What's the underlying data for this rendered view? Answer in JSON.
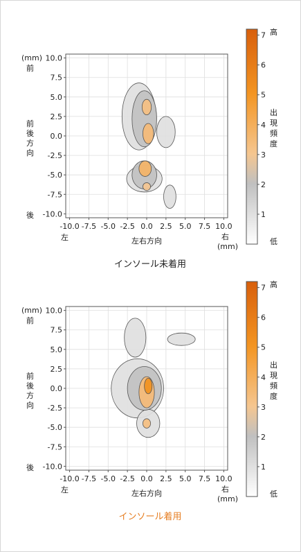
{
  "chart_data": [
    {
      "type": "heatmap",
      "title": "インソール未着用",
      "title_color": "#222222",
      "xlabel": "左右方向",
      "ylabel": [
        "前",
        "後",
        "方",
        "向"
      ],
      "x_left_label": "左",
      "x_right_label": "右",
      "x_unit": "(mm)",
      "y_unit": "(mm)",
      "y_top_label": "前",
      "y_bottom_label": "後",
      "xlim": [
        -10.5,
        10.5
      ],
      "ylim": [
        -10.5,
        10.5
      ],
      "xticks": [
        "-10.0",
        "-7.5",
        "-5.0",
        "-2.5",
        "0.0",
        "2.5",
        "5.0",
        "7.5",
        "10.0"
      ],
      "yticks": [
        "10.0",
        "7.5",
        "5.0",
        "2.5",
        "0.0",
        "-2.5",
        "-5.0",
        "-7.5",
        "-10.0"
      ],
      "grid": true,
      "colorbar": {
        "min": 0,
        "max": 7.2,
        "ticks": [
          "1",
          "2",
          "3",
          "4",
          "5",
          "6",
          "7"
        ],
        "high_label": "高",
        "low_label": "低",
        "label": [
          "出",
          "現",
          "頻",
          "度"
        ]
      },
      "blobs": [
        {
          "cx": -1.0,
          "cy": 2.5,
          "rx": 2.2,
          "ry": 4.3,
          "v": 1.0
        },
        {
          "cx": -0.3,
          "cy": -5.5,
          "rx": 2.3,
          "ry": 1.7,
          "v": 1.0
        },
        {
          "cx": 3.0,
          "cy": -7.8,
          "rx": 0.8,
          "ry": 1.5,
          "v": 1.0
        },
        {
          "cx": 2.5,
          "cy": 0.5,
          "rx": 1.2,
          "ry": 2.0,
          "v": 1.0
        },
        {
          "cx": -0.3,
          "cy": 2.2,
          "rx": 1.6,
          "ry": 3.6,
          "v": 2.0
        },
        {
          "cx": -0.3,
          "cy": -5.0,
          "rx": 1.6,
          "ry": 1.8,
          "v": 2.0
        },
        {
          "cx": 0.0,
          "cy": 3.7,
          "rx": 0.6,
          "ry": 1.0,
          "v": 3.3
        },
        {
          "cx": 0.2,
          "cy": 0.3,
          "rx": 0.7,
          "ry": 1.3,
          "v": 3.5
        },
        {
          "cx": -0.2,
          "cy": -4.2,
          "rx": 0.8,
          "ry": 1.0,
          "v": 3.8
        },
        {
          "cx": 0.0,
          "cy": -6.5,
          "rx": 0.5,
          "ry": 0.5,
          "v": 3.0
        }
      ]
    },
    {
      "type": "heatmap",
      "title": "インソール着用",
      "title_color": "#e67e22",
      "xlabel": "左右方向",
      "ylabel": [
        "前",
        "後",
        "方",
        "向"
      ],
      "x_left_label": "左",
      "x_right_label": "右",
      "x_unit": "(mm)",
      "y_unit": "(mm)",
      "y_top_label": "前",
      "y_bottom_label": "後",
      "xlim": [
        -10.5,
        10.5
      ],
      "ylim": [
        -10.5,
        10.5
      ],
      "xticks": [
        "-10.0",
        "-7.5",
        "-5.0",
        "-2.5",
        "0.0",
        "2.5",
        "5.0",
        "7.5",
        "10.0"
      ],
      "yticks": [
        "10.0",
        "7.5",
        "5.0",
        "2.5",
        "0.0",
        "-2.5",
        "-5.0",
        "-7.5",
        "-10.0"
      ],
      "grid": true,
      "colorbar": {
        "min": 0,
        "max": 7.2,
        "ticks": [
          "1",
          "2",
          "3",
          "4",
          "5",
          "6",
          "7"
        ],
        "high_label": "高",
        "low_label": "低",
        "label": [
          "出",
          "現",
          "頻",
          "度"
        ]
      },
      "blobs": [
        {
          "cx": -1.5,
          "cy": 6.5,
          "rx": 1.4,
          "ry": 2.5,
          "v": 1.0
        },
        {
          "cx": 4.5,
          "cy": 6.3,
          "rx": 1.8,
          "ry": 0.8,
          "v": 1.0
        },
        {
          "cx": -1.2,
          "cy": 0.0,
          "rx": 3.4,
          "ry": 3.8,
          "v": 1.0
        },
        {
          "cx": 0.2,
          "cy": -4.5,
          "rx": 1.5,
          "ry": 1.8,
          "v": 1.0
        },
        {
          "cx": -0.3,
          "cy": 0.0,
          "rx": 2.2,
          "ry": 2.8,
          "v": 2.0
        },
        {
          "cx": 0.0,
          "cy": -0.5,
          "rx": 1.0,
          "ry": 2.0,
          "v": 3.5
        },
        {
          "cx": 0.2,
          "cy": 0.3,
          "rx": 0.5,
          "ry": 1.0,
          "v": 5.2
        },
        {
          "cx": 0.0,
          "cy": -4.5,
          "rx": 0.5,
          "ry": 0.6,
          "v": 3.3
        }
      ]
    }
  ]
}
